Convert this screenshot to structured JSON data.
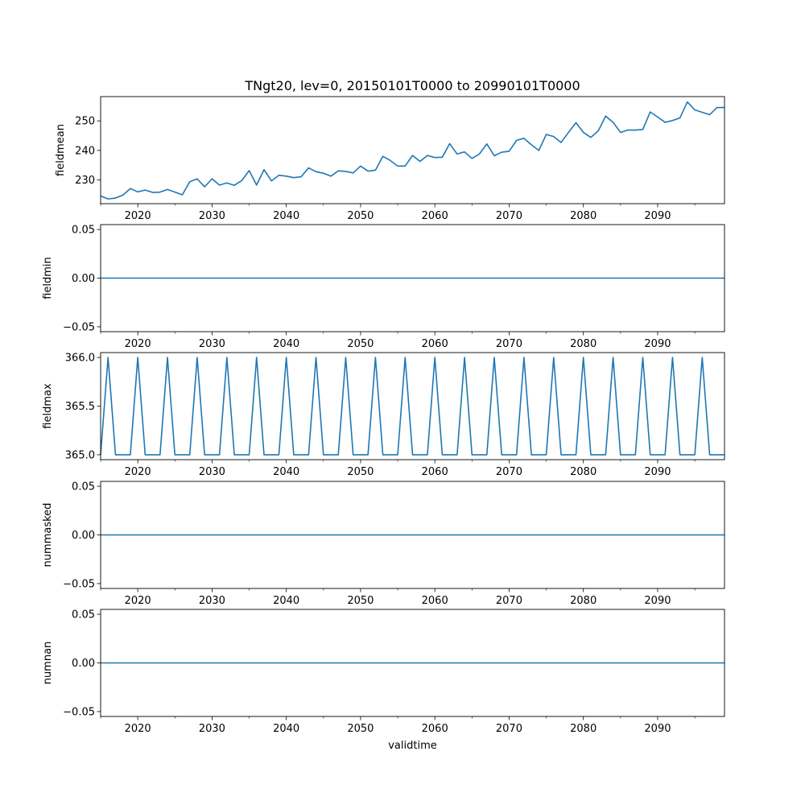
{
  "figure": {
    "title": "TNgt20, lev=0, 20150101T0000 to 20990101T0000",
    "xlabel": "validtime",
    "line_color": "#1f77b4"
  },
  "chart_data": [
    {
      "type": "line",
      "ylabel": "fieldmean",
      "xlim": [
        2015,
        2099
      ],
      "ylim": [
        222.0,
        258.2
      ],
      "xticks": [
        2020,
        2030,
        2040,
        2050,
        2060,
        2070,
        2080,
        2090
      ],
      "yticks": [
        230,
        240,
        250
      ],
      "ytick_labels": [
        "230",
        "240",
        "250"
      ],
      "series": [
        {
          "x": [
            2015,
            2016,
            2017,
            2018,
            2019,
            2020,
            2021,
            2022,
            2023,
            2024,
            2025,
            2026,
            2027,
            2028,
            2029,
            2030,
            2031,
            2032,
            2033,
            2034,
            2035,
            2036,
            2037,
            2038,
            2039,
            2040,
            2041,
            2042,
            2043,
            2044,
            2045,
            2046,
            2047,
            2048,
            2049,
            2050,
            2051,
            2052,
            2053,
            2054,
            2055,
            2056,
            2057,
            2058,
            2059,
            2060,
            2061,
            2062,
            2063,
            2064,
            2065,
            2066,
            2067,
            2068,
            2069,
            2070,
            2071,
            2072,
            2073,
            2074,
            2075,
            2076,
            2077,
            2078,
            2079,
            2080,
            2081,
            2082,
            2083,
            2084,
            2085,
            2086,
            2087,
            2088,
            2089,
            2090,
            2091,
            2092,
            2093,
            2094,
            2095,
            2096,
            2097,
            2098,
            2099
          ],
          "values": [
            224.6,
            223.6,
            223.9,
            224.9,
            227.1,
            226.0,
            226.6,
            225.8,
            225.9,
            226.8,
            225.9,
            225.0,
            229.4,
            230.4,
            227.7,
            230.4,
            228.3,
            229.0,
            228.2,
            229.8,
            233.2,
            228.3,
            233.5,
            229.7,
            231.6,
            231.3,
            230.8,
            231.1,
            234.1,
            232.8,
            232.3,
            231.3,
            233.1,
            232.9,
            232.4,
            234.7,
            233.0,
            233.3,
            238.0,
            236.6,
            234.7,
            234.7,
            238.3,
            236.3,
            238.3,
            237.6,
            237.7,
            242.3,
            238.8,
            239.5,
            237.3,
            238.8,
            242.2,
            238.2,
            239.4,
            239.7,
            243.4,
            244.1,
            241.9,
            240.0,
            245.4,
            244.7,
            242.7,
            246.1,
            249.4,
            246.1,
            244.4,
            246.6,
            251.6,
            249.5,
            246.1,
            246.9,
            246.9,
            247.1,
            253.0,
            251.3,
            249.5,
            250.1,
            251.0,
            256.4,
            253.7,
            252.9,
            252.1,
            254.5,
            254.5
          ]
        }
      ]
    },
    {
      "type": "line",
      "ylabel": "fieldmin",
      "xlim": [
        2015,
        2099
      ],
      "ylim": [
        -0.055,
        0.055
      ],
      "xticks": [
        2020,
        2030,
        2040,
        2050,
        2060,
        2070,
        2080,
        2090
      ],
      "yticks": [
        0.05,
        0.0,
        -0.05
      ],
      "ytick_labels": [
        "0.05",
        "0.00",
        "−0.05"
      ],
      "series": [
        {
          "x": [
            2015,
            2099
          ],
          "values": [
            0,
            0
          ]
        }
      ]
    },
    {
      "type": "line",
      "ylabel": "fieldmax",
      "xlim": [
        2015,
        2099
      ],
      "ylim": [
        364.95,
        366.05
      ],
      "xticks": [
        2020,
        2030,
        2040,
        2050,
        2060,
        2070,
        2080,
        2090
      ],
      "yticks": [
        366.0,
        365.5,
        365.0
      ],
      "ytick_labels": [
        "366.0",
        "365.5",
        "365.0"
      ],
      "series": [
        {
          "x": [
            2015,
            2016,
            2017,
            2018,
            2019,
            2020,
            2021,
            2022,
            2023,
            2024,
            2025,
            2026,
            2027,
            2028,
            2029,
            2030,
            2031,
            2032,
            2033,
            2034,
            2035,
            2036,
            2037,
            2038,
            2039,
            2040,
            2041,
            2042,
            2043,
            2044,
            2045,
            2046,
            2047,
            2048,
            2049,
            2050,
            2051,
            2052,
            2053,
            2054,
            2055,
            2056,
            2057,
            2058,
            2059,
            2060,
            2061,
            2062,
            2063,
            2064,
            2065,
            2066,
            2067,
            2068,
            2069,
            2070,
            2071,
            2072,
            2073,
            2074,
            2075,
            2076,
            2077,
            2078,
            2079,
            2080,
            2081,
            2082,
            2083,
            2084,
            2085,
            2086,
            2087,
            2088,
            2089,
            2090,
            2091,
            2092,
            2093,
            2094,
            2095,
            2096,
            2097,
            2098,
            2099
          ],
          "values": [
            365,
            366,
            365,
            365,
            365,
            366,
            365,
            365,
            365,
            366,
            365,
            365,
            365,
            366,
            365,
            365,
            365,
            366,
            365,
            365,
            365,
            366,
            365,
            365,
            365,
            366,
            365,
            365,
            365,
            366,
            365,
            365,
            365,
            366,
            365,
            365,
            365,
            366,
            365,
            365,
            365,
            366,
            365,
            365,
            365,
            366,
            365,
            365,
            365,
            366,
            365,
            365,
            365,
            366,
            365,
            365,
            365,
            366,
            365,
            365,
            365,
            366,
            365,
            365,
            365,
            366,
            365,
            365,
            365,
            366,
            365,
            365,
            365,
            366,
            365,
            365,
            365,
            366,
            365,
            365,
            365,
            366,
            365,
            365,
            365
          ]
        }
      ]
    },
    {
      "type": "line",
      "ylabel": "nummasked",
      "xlim": [
        2015,
        2099
      ],
      "ylim": [
        -0.055,
        0.055
      ],
      "xticks": [
        2020,
        2030,
        2040,
        2050,
        2060,
        2070,
        2080,
        2090
      ],
      "yticks": [
        0.05,
        0.0,
        -0.05
      ],
      "ytick_labels": [
        "0.05",
        "0.00",
        "−0.05"
      ],
      "series": [
        {
          "x": [
            2015,
            2099
          ],
          "values": [
            0,
            0
          ]
        }
      ]
    },
    {
      "type": "line",
      "ylabel": "numnan",
      "xlim": [
        2015,
        2099
      ],
      "ylim": [
        -0.055,
        0.055
      ],
      "xticks": [
        2020,
        2030,
        2040,
        2050,
        2060,
        2070,
        2080,
        2090
      ],
      "yticks": [
        0.05,
        0.0,
        -0.05
      ],
      "ytick_labels": [
        "0.05",
        "0.00",
        "−0.05"
      ],
      "series": [
        {
          "x": [
            2015,
            2099
          ],
          "values": [
            0,
            0
          ]
        }
      ]
    }
  ]
}
